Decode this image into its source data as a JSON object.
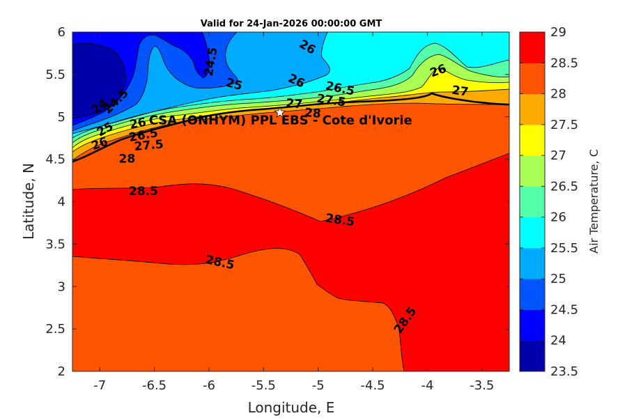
{
  "chart_data": {
    "type": "contour",
    "title": "Valid for 24-Jan-2026 00:00:00 GMT",
    "xlabel": "Longitude, E",
    "ylabel": "Latitude, N",
    "colorbar_label": "Air Temperature, C",
    "xlim": [
      -7.25,
      -3.25
    ],
    "ylim": [
      2,
      6
    ],
    "x_ticks": [
      -7,
      -6.5,
      -6,
      -5.5,
      -5,
      -4.5,
      -4,
      -3.5
    ],
    "x_tick_labels": [
      "-7",
      "-6.5",
      "-6",
      "-5.5",
      "-5",
      "-4.5",
      "-4",
      "-3.5"
    ],
    "y_ticks": [
      2,
      2.5,
      3,
      3.5,
      4,
      4.5,
      5,
      5.5,
      6
    ],
    "y_tick_labels": [
      "2",
      "2.5",
      "3",
      "3.5",
      "4",
      "4.5",
      "5",
      "5.5",
      "6"
    ],
    "colorbar_levels": [
      23.5,
      24,
      24.5,
      25,
      25.5,
      26,
      26.5,
      27,
      27.5,
      28,
      28.5,
      29
    ],
    "colorbar_tick_labels": [
      "23.5",
      "24",
      "24.5",
      "25",
      "25.5",
      "26",
      "26.5",
      "27",
      "27.5",
      "28",
      "28.5",
      "29"
    ],
    "colormap": [
      "#0000aa",
      "#0000ff",
      "#0055ff",
      "#00aaff",
      "#00ffff",
      "#55ffaa",
      "#aaff55",
      "#ffff00",
      "#ffaa00",
      "#ff5500",
      "#ff0000",
      "#aa0000"
    ],
    "grid": false,
    "contour_labels": [
      {
        "text": "24.5",
        "lon": -5.98,
        "lat": 5.65,
        "angle": 80
      },
      {
        "text": "26",
        "lon": -5.1,
        "lat": 5.82,
        "angle": -30
      },
      {
        "text": "25",
        "lon": -5.77,
        "lat": 5.38,
        "angle": -15
      },
      {
        "text": "26",
        "lon": -5.2,
        "lat": 5.42,
        "angle": -25
      },
      {
        "text": "26.5",
        "lon": -4.8,
        "lat": 5.33,
        "angle": -12
      },
      {
        "text": "26",
        "lon": -3.9,
        "lat": 5.54,
        "angle": 20
      },
      {
        "text": "27",
        "lon": -3.7,
        "lat": 5.3,
        "angle": -8
      },
      {
        "text": "27",
        "lon": -5.22,
        "lat": 5.15,
        "angle": -5
      },
      {
        "text": "27.5",
        "lon": -4.88,
        "lat": 5.19,
        "angle": -8
      },
      {
        "text": "28",
        "lon": -5.05,
        "lat": 5.04,
        "angle": -5
      },
      {
        "text": "24",
        "lon": -7.0,
        "lat": 5.12,
        "angle": 40
      },
      {
        "text": "24.5",
        "lon": -6.85,
        "lat": 5.18,
        "angle": 45
      },
      {
        "text": "25",
        "lon": -6.95,
        "lat": 4.85,
        "angle": 30
      },
      {
        "text": "26",
        "lon": -7.0,
        "lat": 4.68,
        "angle": 20
      },
      {
        "text": "26",
        "lon": -6.65,
        "lat": 4.92,
        "angle": 10
      },
      {
        "text": "26.5",
        "lon": -6.6,
        "lat": 4.78,
        "angle": 10
      },
      {
        "text": "27.5",
        "lon": -6.55,
        "lat": 4.66,
        "angle": 5
      },
      {
        "text": "28",
        "lon": -6.75,
        "lat": 4.5,
        "angle": 0
      },
      {
        "text": "28.5",
        "lon": -6.6,
        "lat": 4.12,
        "angle": 0
      },
      {
        "text": "28.5",
        "lon": -4.8,
        "lat": 3.78,
        "angle": -8
      },
      {
        "text": "28.5",
        "lon": -5.9,
        "lat": 3.28,
        "angle": -12
      },
      {
        "text": "28.5",
        "lon": -4.2,
        "lat": 2.6,
        "angle": 55
      }
    ],
    "annotation": {
      "text": "CSA (ONHYM) PPL EBS - Cote d'Ivorie",
      "lon": -6.55,
      "lat": 4.96
    },
    "marker": {
      "type": "star",
      "lon": -5.35,
      "lat": 5.05
    }
  }
}
